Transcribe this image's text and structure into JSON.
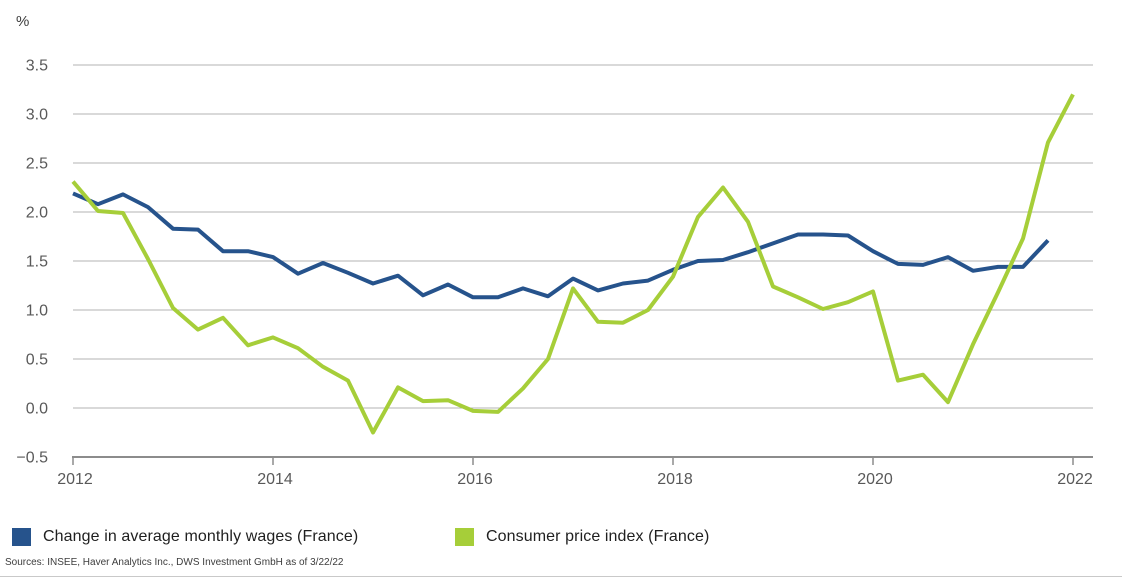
{
  "chart": {
    "sources": "Sources: INSEE, Haver Analytics Inc., DWS Investment GmbH as of 3/22/22"
  },
  "chart_data": {
    "type": "line",
    "title": "",
    "xlabel": "",
    "ylabel": "%",
    "ylim": [
      -0.5,
      3.5
    ],
    "ytick_step": 0.5,
    "yticklabels": [
      "3.5",
      "3.0",
      "2.5",
      "2.0",
      "1.5",
      "1.0",
      "0.5",
      "0.0",
      "−0.5"
    ],
    "xticks": [
      2012,
      2014,
      2016,
      2018,
      2020,
      2022
    ],
    "xticklabels": [
      "2012",
      "2014",
      "2016",
      "2018",
      "2020",
      "2022"
    ],
    "x_start_year": 2012,
    "x_step_years": 0.25,
    "x_frequency": "quarterly",
    "grid": "horizontal",
    "legend_position": "bottom",
    "colors": {
      "wages": "#26538c",
      "cpi": "#a6ce39",
      "gridline": "#b3b3b3",
      "axis": "#8c8c8c",
      "tick_label": "#595959"
    },
    "series": [
      {
        "name": "Change in average monthly wages (France)",
        "color_key": "wages",
        "start_year": 2012.0,
        "values": [
          2.19,
          2.08,
          2.18,
          2.05,
          1.83,
          1.82,
          1.6,
          1.6,
          1.54,
          1.37,
          1.48,
          1.38,
          1.27,
          1.35,
          1.15,
          1.26,
          1.13,
          1.13,
          1.22,
          1.14,
          1.32,
          1.2,
          1.27,
          1.3,
          1.41,
          1.5,
          1.51,
          1.59,
          1.68,
          1.77,
          1.77,
          1.76,
          1.6,
          1.47,
          1.46,
          1.54,
          1.4,
          1.44,
          1.44,
          1.71
        ]
      },
      {
        "name": "Consumer price index (France)",
        "color_key": "cpi",
        "start_year": 2012.0,
        "values": [
          2.31,
          2.01,
          1.99,
          1.52,
          1.02,
          0.8,
          0.92,
          0.64,
          0.72,
          0.61,
          0.42,
          0.28,
          -0.25,
          0.21,
          0.07,
          0.08,
          -0.03,
          -0.04,
          0.2,
          0.5,
          1.22,
          0.88,
          0.87,
          1.0,
          1.34,
          1.95,
          2.25,
          1.9,
          1.24,
          1.13,
          1.01,
          1.08,
          1.19,
          0.28,
          0.34,
          0.06,
          0.65,
          1.18,
          1.73,
          2.71,
          3.2
        ]
      }
    ]
  }
}
